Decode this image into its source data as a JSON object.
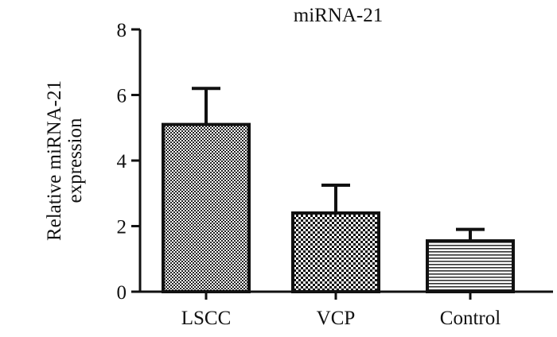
{
  "chart_data": {
    "type": "bar",
    "title": "miRNA-21",
    "xlabel": "",
    "ylabel_lines": [
      "Relative miRNA-21",
      "expression"
    ],
    "categories": [
      "LSCC",
      "VCP",
      "Control"
    ],
    "values": [
      5.1,
      2.4,
      1.55
    ],
    "error_upper": [
      6.2,
      3.25,
      1.9
    ],
    "patterns": [
      "checker-dense",
      "checker-coarse",
      "horizontal-lines"
    ],
    "ylim": [
      0,
      8
    ],
    "yticks": [
      "0",
      "2",
      "4",
      "6",
      "8"
    ],
    "grid": false
  }
}
